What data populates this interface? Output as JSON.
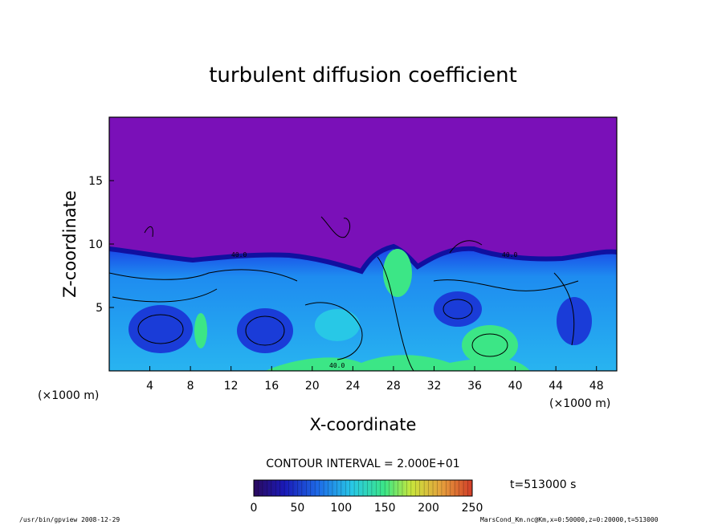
{
  "chart_data": {
    "type": "heatmap",
    "title": "turbulent diffusion coefficient",
    "xlabel": "X-coordinate",
    "ylabel": "Z-coordinate",
    "x_unit": "(×1000 m)",
    "y_unit": "(×1000 m)",
    "xlim": [
      0,
      50
    ],
    "ylim": [
      0,
      20
    ],
    "x_ticks": [
      4,
      8,
      12,
      16,
      20,
      24,
      28,
      32,
      36,
      40,
      44,
      48
    ],
    "y_ticks": [
      5,
      10,
      15
    ],
    "contour_interval_text": "CONTOUR INTERVAL = 2.000E+01",
    "contour_labels": [
      {
        "text": "40.0",
        "x": 13.5,
        "z": 9.0
      },
      {
        "text": "40.0",
        "x": 39.0,
        "z": 9.0
      },
      {
        "text": "40.0",
        "x": 22.5,
        "z": 0.4
      }
    ],
    "mixed_layer_top_km": 9.5,
    "colorbar": {
      "min": 0,
      "max": 250,
      "ticks": [
        0,
        50,
        100,
        150,
        200,
        250
      ],
      "colors": [
        "#2b0a5e",
        "#1a1ab8",
        "#1e6ee8",
        "#28c8e6",
        "#3ce686",
        "#c8e63c",
        "#e6a03c",
        "#d23c28"
      ]
    },
    "background_color": "#7a10b8",
    "time_label": "t=513000 s",
    "footer_left": "/usr/bin/gpview   2008-12-29",
    "footer_right": "MarsCond_Km.nc@Km,x=0:50000,z=0:20000,t=513000"
  }
}
